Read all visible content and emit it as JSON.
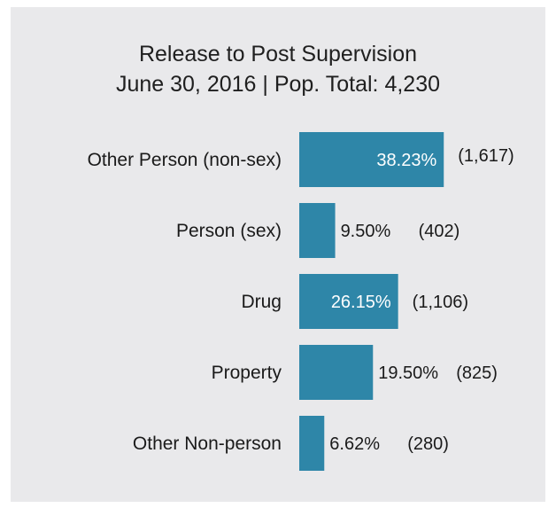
{
  "chart_data": {
    "type": "bar",
    "orientation": "horizontal",
    "title": "Release to Post Supervision",
    "subtitle": "June 30, 2016 | Pop. Total: 4,230",
    "categories": [
      "Other Person (non-sex)",
      "Person (sex)",
      "Drug",
      "Property",
      "Other Non-person"
    ],
    "values": [
      38.23,
      9.5,
      26.15,
      19.5,
      6.62
    ],
    "value_labels": [
      "38.23%",
      "9.50%",
      "26.15%",
      "19.50%",
      "6.62%"
    ],
    "counts": [
      1617,
      402,
      1106,
      825,
      280
    ],
    "count_labels": [
      "(1,617)",
      "(402)",
      "(1,106)",
      "(825)",
      "(280)"
    ],
    "bar_color": "#2e86a8",
    "background_color": "#e9e9eb",
    "grid": false,
    "legend": "none"
  }
}
